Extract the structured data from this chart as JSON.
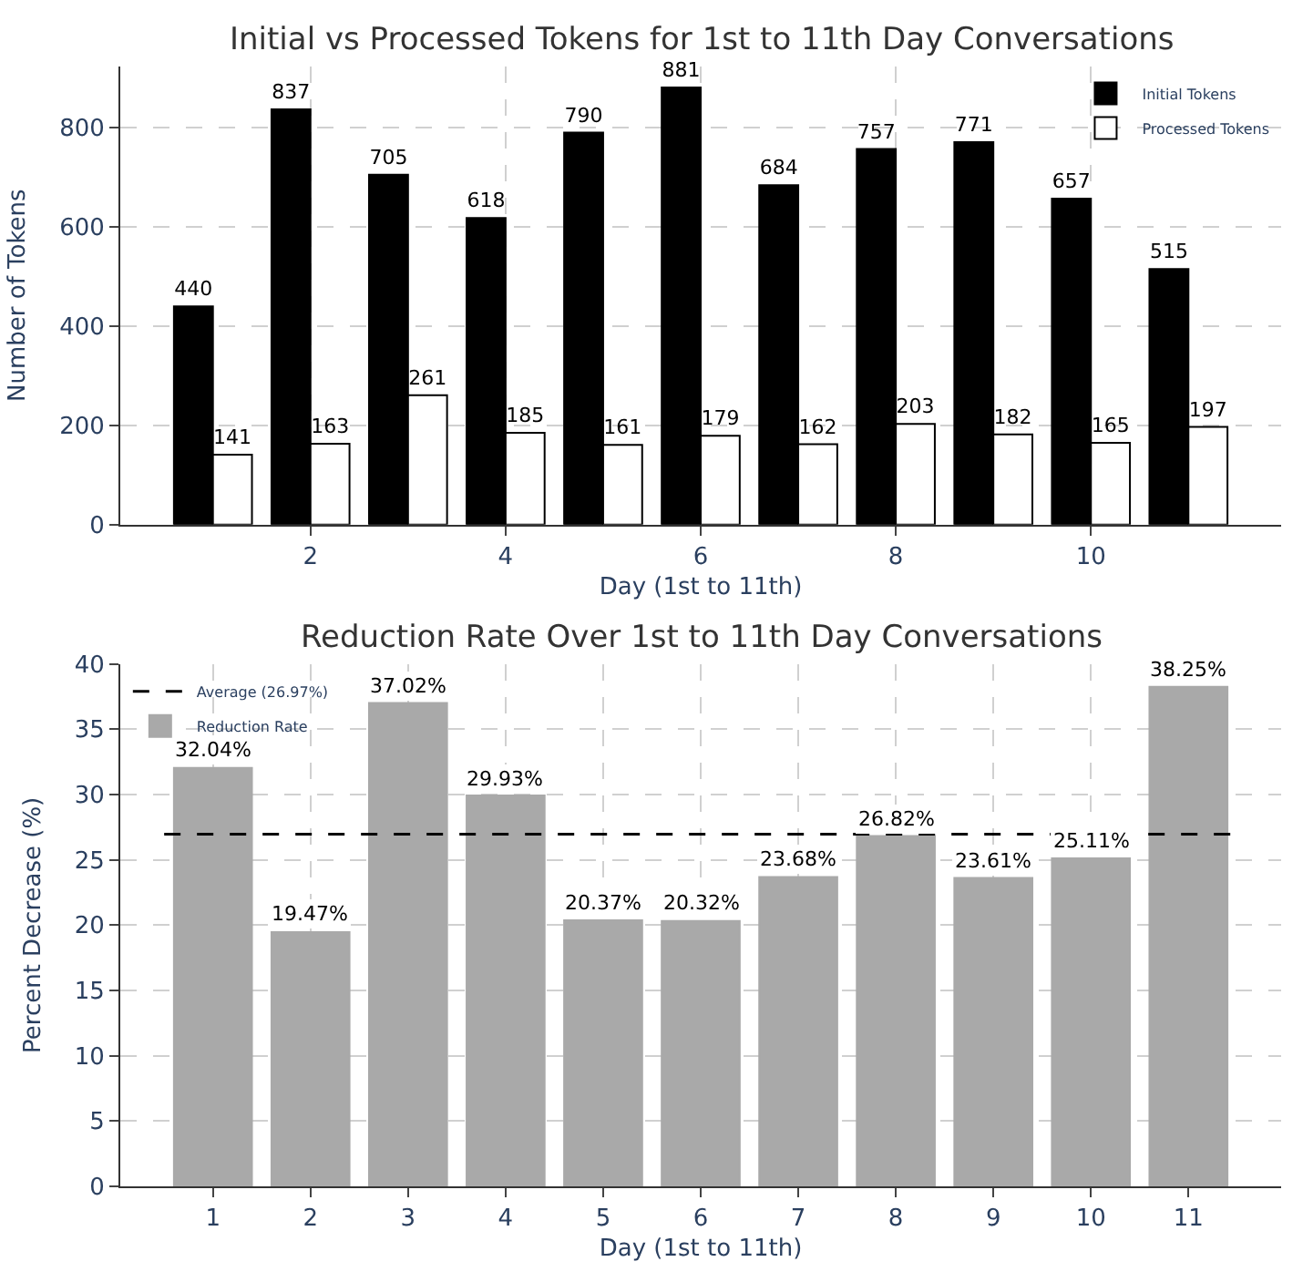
{
  "chart_data": [
    {
      "type": "bar",
      "title": "Initial vs Processed Tokens for 1st to 11th Day Conversations",
      "xlabel": "Day (1st to 11th)",
      "ylabel": "Number of Tokens",
      "x": [
        1,
        2,
        3,
        4,
        5,
        6,
        7,
        8,
        9,
        10,
        11
      ],
      "series": [
        {
          "name": "Initial Tokens",
          "color": "#000000",
          "values": [
            440,
            837,
            705,
            618,
            790,
            881,
            684,
            757,
            771,
            657,
            515
          ]
        },
        {
          "name": "Processed Tokens",
          "color": "#ffffff",
          "values": [
            141,
            163,
            261,
            185,
            161,
            179,
            162,
            203,
            182,
            165,
            197
          ]
        }
      ],
      "xlim": [
        0.05,
        11.95
      ],
      "xticks": [
        2,
        4,
        6,
        8,
        10
      ],
      "ylim": [
        0,
        924
      ],
      "yticks": [
        0,
        200,
        400,
        600,
        800
      ],
      "grid": true,
      "legend": "top right",
      "data_labels": true
    },
    {
      "type": "bar",
      "title": "Reduction Rate Over 1st to 11th Day Conversations",
      "xlabel": "Day (1st to 11th)",
      "ylabel": "Percent Decrease (%)",
      "categories": [
        "1",
        "2",
        "3",
        "4",
        "5",
        "6",
        "7",
        "8",
        "9",
        "10",
        "11"
      ],
      "series": [
        {
          "name": "Reduction Rate",
          "color": "#a9a9a9",
          "values": [
            32.04,
            19.47,
            37.02,
            29.93,
            20.37,
            20.32,
            23.68,
            26.82,
            23.61,
            25.11,
            38.25
          ],
          "value_labels": [
            "32.04%",
            "19.47%",
            "37.02%",
            "29.93%",
            "20.37%",
            "20.32%",
            "23.68%",
            "26.82%",
            "23.61%",
            "25.11%",
            "38.25%"
          ]
        }
      ],
      "ref_lines": [
        {
          "axis": "y",
          "value": 26.97,
          "label": "Average (26.97%)",
          "color": "#000000",
          "line_style": "dashed"
        }
      ],
      "ylim": [
        0,
        40
      ],
      "yticks": [
        0,
        5,
        10,
        15,
        20,
        25,
        30,
        35,
        40
      ],
      "grid": true,
      "legend": "top left"
    }
  ]
}
